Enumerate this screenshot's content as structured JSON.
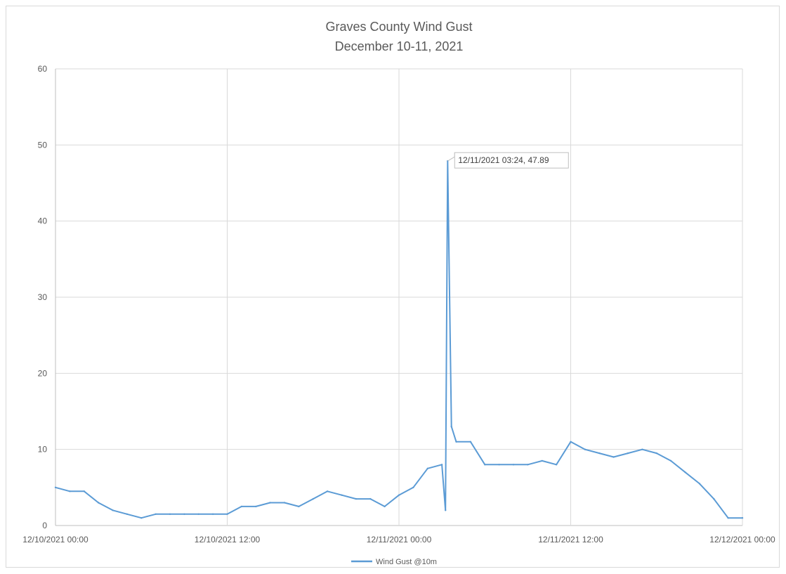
{
  "chart_data": {
    "type": "line",
    "title": "Graves County Wind Gust",
    "subtitle": "December 10-11, 2021",
    "xlabel": "",
    "ylabel": "",
    "ylim": [
      0,
      60
    ],
    "y_ticks": [
      "0",
      "10",
      "20",
      "30",
      "40",
      "50",
      "60"
    ],
    "x_range": [
      "2021-12-10 00:00",
      "2021-12-12 00:00"
    ],
    "x_ticks": [
      "12/10/2021 00:00",
      "12/10/2021 12:00",
      "12/11/2021 00:00",
      "12/11/2021 12:00",
      "12/12/2021 00:00"
    ],
    "grid": true,
    "legend_position": "bottom",
    "series": [
      {
        "name": "Wind Gust @10m",
        "color": "#5b9bd5",
        "x": [
          "2021-12-10 00:00",
          "2021-12-10 01:00",
          "2021-12-10 02:00",
          "2021-12-10 03:00",
          "2021-12-10 04:00",
          "2021-12-10 05:00",
          "2021-12-10 06:00",
          "2021-12-10 07:00",
          "2021-12-10 08:00",
          "2021-12-10 09:00",
          "2021-12-10 10:00",
          "2021-12-10 11:00",
          "2021-12-10 12:00",
          "2021-12-10 13:00",
          "2021-12-10 14:00",
          "2021-12-10 15:00",
          "2021-12-10 16:00",
          "2021-12-10 17:00",
          "2021-12-10 18:00",
          "2021-12-10 19:00",
          "2021-12-10 20:00",
          "2021-12-10 21:00",
          "2021-12-10 22:00",
          "2021-12-10 23:00",
          "2021-12-11 00:00",
          "2021-12-11 01:00",
          "2021-12-11 02:00",
          "2021-12-11 03:00",
          "2021-12-11 03:15",
          "2021-12-11 03:24",
          "2021-12-11 03:40",
          "2021-12-11 04:00",
          "2021-12-11 05:00",
          "2021-12-11 06:00",
          "2021-12-11 07:00",
          "2021-12-11 08:00",
          "2021-12-11 09:00",
          "2021-12-11 10:00",
          "2021-12-11 11:00",
          "2021-12-11 12:00",
          "2021-12-11 13:00",
          "2021-12-11 14:00",
          "2021-12-11 15:00",
          "2021-12-11 16:00",
          "2021-12-11 17:00",
          "2021-12-11 18:00",
          "2021-12-11 19:00",
          "2021-12-11 20:00",
          "2021-12-11 21:00",
          "2021-12-11 22:00",
          "2021-12-11 23:00",
          "2021-12-12 00:00"
        ],
        "values": [
          5,
          4.5,
          4.5,
          3,
          2,
          1.5,
          1,
          1.5,
          1.5,
          1.5,
          1.5,
          1.5,
          1.5,
          2.5,
          2.5,
          3,
          3,
          2.5,
          3.5,
          4.5,
          4,
          3.5,
          3.5,
          2.5,
          4,
          5,
          7.5,
          8,
          2,
          47.89,
          13,
          11,
          11,
          8,
          8,
          8,
          8,
          8.5,
          8,
          11,
          10,
          9.5,
          9,
          9.5,
          10,
          9.5,
          8.5,
          7,
          5.5,
          3.5,
          1,
          1
        ],
        "annotation": {
          "x": "2021-12-11 03:24",
          "y": 47.89,
          "label": "12/11/2021 03:24, 47.89"
        }
      }
    ]
  }
}
